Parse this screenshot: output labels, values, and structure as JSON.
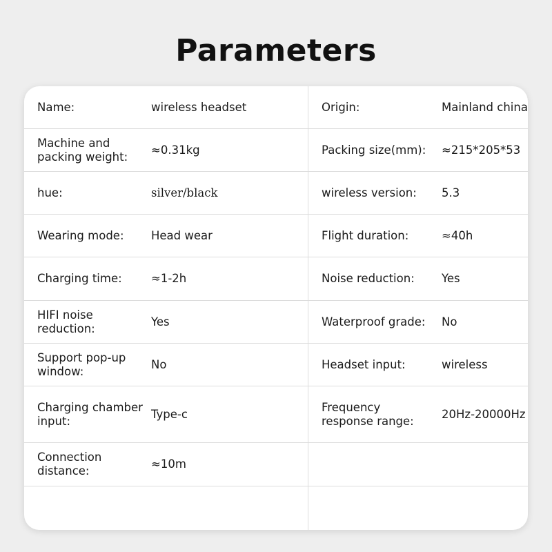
{
  "title": "Parameters",
  "rows": [
    {
      "l1": "Name:",
      "v1": "wireless headset",
      "l2": "Origin:",
      "v2": "Mainland china"
    },
    {
      "l1": "Machine and packing weight:",
      "v1": "≈0.31kg",
      "l2": "Packing size(mm):",
      "v2": "≈215*205*53"
    },
    {
      "l1": "hue:",
      "v1": "silver/black",
      "l2": "wireless version:",
      "v2": "5.3"
    },
    {
      "l1": "Wearing mode:",
      "v1": "Head wear",
      "l2": "Flight duration:",
      "v2": "≈40h"
    },
    {
      "l1": "Charging time:",
      "v1": "≈1-2h",
      "l2": "Noise reduction:",
      "v2": "Yes"
    },
    {
      "l1": "HIFI noise reduction:",
      "v1": "Yes",
      "l2": "Waterproof grade:",
      "v2": "No"
    },
    {
      "l1": "Support pop-up window:",
      "v1": "No",
      "l2": "Headset input:",
      "v2": "wireless"
    },
    {
      "l1": "Charging chamber input:",
      "v1": "Type-c",
      "l2": "Frequency response range:",
      "v2": "20Hz-20000Hz"
    },
    {
      "l1": "Connection distance:",
      "v1": "≈10m",
      "l2": "",
      "v2": ""
    },
    {
      "l1": "",
      "v1": "",
      "l2": "",
      "v2": ""
    }
  ]
}
